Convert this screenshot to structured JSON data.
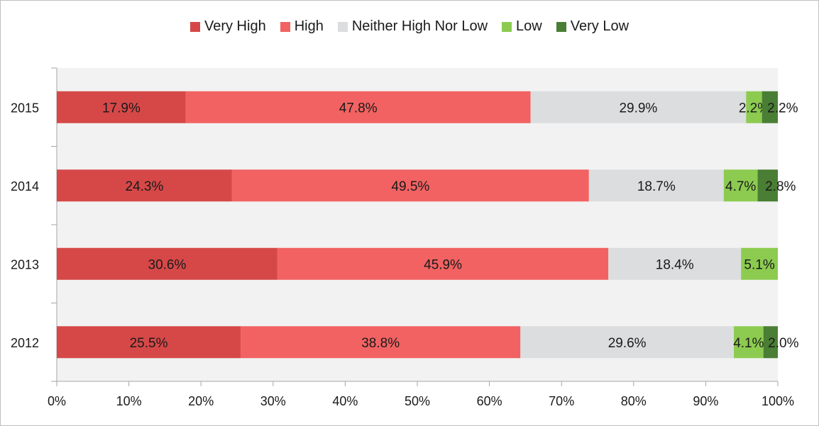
{
  "chart_data": {
    "type": "bar",
    "orientation": "horizontal",
    "stacked": "percent",
    "categories": [
      "2015",
      "2014",
      "2013",
      "2012"
    ],
    "series": [
      {
        "name": "Very High",
        "color": "#d64848",
        "values": [
          17.9,
          24.3,
          30.6,
          25.5
        ],
        "labels": [
          "17.9%",
          "24.3%",
          "30.6%",
          "25.5%"
        ]
      },
      {
        "name": "High",
        "color": "#f26262",
        "values": [
          47.8,
          49.5,
          45.9,
          38.8
        ],
        "labels": [
          "47.8%",
          "49.5%",
          "45.9%",
          "38.8%"
        ]
      },
      {
        "name": "Neither High Nor Low",
        "color": "#dcdddf",
        "values": [
          29.9,
          18.7,
          18.4,
          29.6
        ],
        "labels": [
          "29.9%",
          "18.7%",
          "18.4%",
          "29.6%"
        ]
      },
      {
        "name": "Low",
        "color": "#8ccb50",
        "values": [
          2.2,
          4.7,
          5.1,
          4.1
        ],
        "labels": [
          "2.2%",
          "4.7%",
          "5.1%",
          "4.1%"
        ]
      },
      {
        "name": "Very Low",
        "color": "#4a7e34",
        "values": [
          2.2,
          2.8,
          0,
          2.0
        ],
        "labels": [
          "2.2%",
          "2.8%",
          "",
          "2.0%"
        ]
      }
    ],
    "xlim": [
      0,
      100
    ],
    "x_ticks": [
      "0%",
      "10%",
      "20%",
      "30%",
      "40%",
      "50%",
      "60%",
      "70%",
      "80%",
      "90%",
      "100%"
    ],
    "legend_position": "top",
    "grid": false,
    "plot_background": "#f2f2f2",
    "title": "",
    "xlabel": "",
    "ylabel": ""
  }
}
